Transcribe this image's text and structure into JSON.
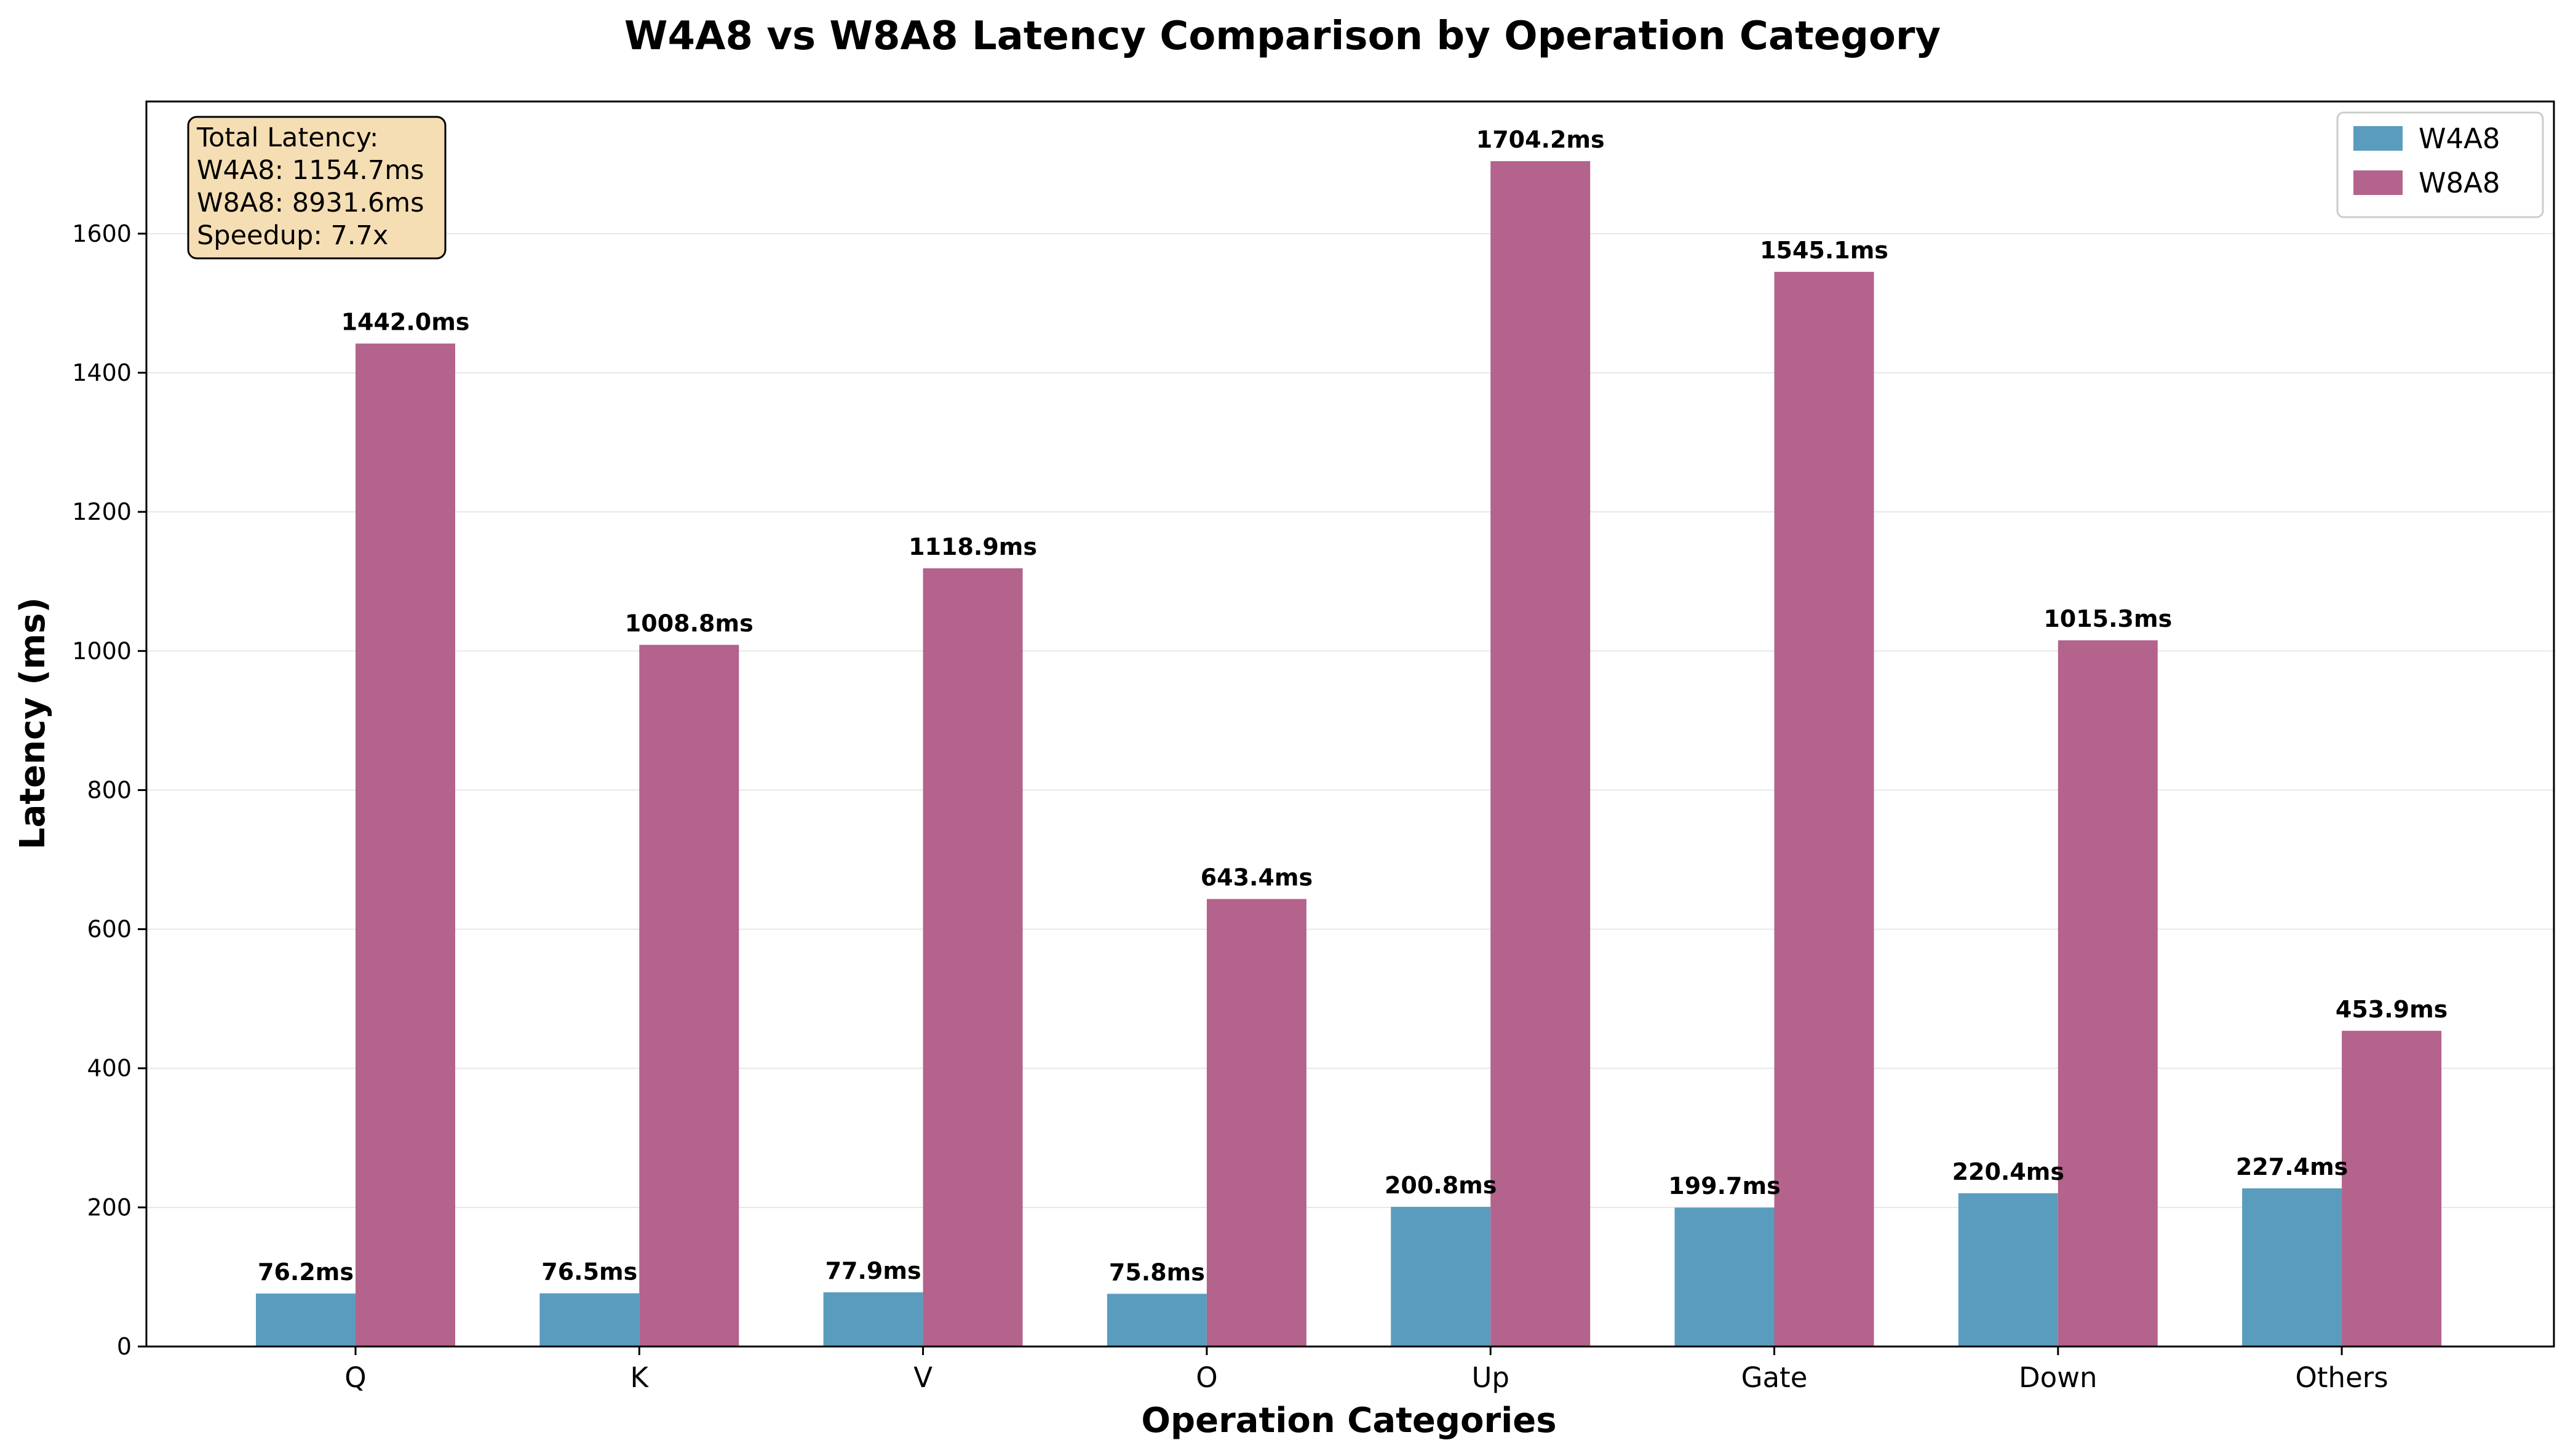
{
  "chart_data": {
    "type": "bar",
    "title": "W4A8 vs W8A8 Latency Comparison by Operation Category",
    "xlabel": "Operation Categories",
    "ylabel": "Latency (ms)",
    "ylim": [
      0,
      1790
    ],
    "yticks": [
      0,
      200,
      400,
      600,
      800,
      1000,
      1200,
      1400,
      1600
    ],
    "grid": "horizontal",
    "legend_position": "top-right",
    "categories": [
      "Q",
      "K",
      "V",
      "O",
      "Up",
      "Gate",
      "Down",
      "Others"
    ],
    "series": [
      {
        "name": "W4A8",
        "color": "#5a9cbd",
        "values": [
          76.2,
          76.5,
          77.9,
          75.8,
          200.8,
          199.7,
          220.4,
          227.4
        ],
        "labels": [
          "76.2ms",
          "76.5ms",
          "77.9ms",
          "75.8ms",
          "200.8ms",
          "199.7ms",
          "220.4ms",
          "227.4ms"
        ]
      },
      {
        "name": "W8A8",
        "color": "#b3638c",
        "values": [
          1442.0,
          1008.8,
          1118.9,
          643.4,
          1704.2,
          1545.1,
          1015.3,
          453.9
        ],
        "labels": [
          "1442.0ms",
          "1008.8ms",
          "1118.9ms",
          "643.4ms",
          "1704.2ms",
          "1545.1ms",
          "1015.3ms",
          "453.9ms"
        ]
      }
    ],
    "annotation": {
      "lines": [
        "Total Latency:",
        "W4A8: 1154.7ms",
        "W8A8: 8931.6ms",
        "Speedup: 7.7x"
      ],
      "background": "#f5deb3",
      "position": "top-left"
    }
  }
}
